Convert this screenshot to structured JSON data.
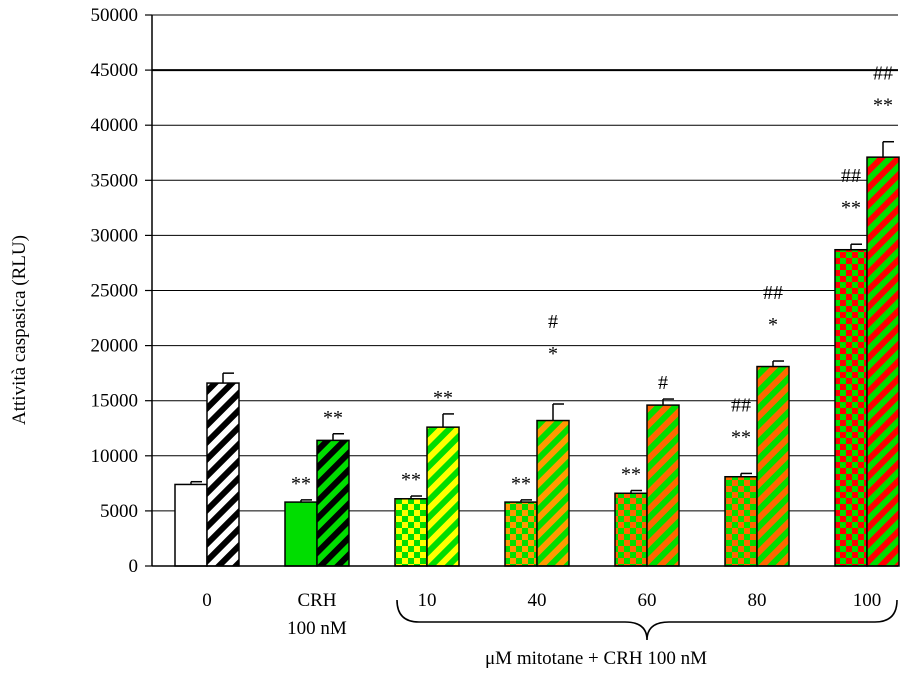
{
  "chart_data": {
    "type": "bar",
    "ylabel": "Attività caspasica (RLU)",
    "ylim": [
      0,
      50000
    ],
    "yticks": [
      "0",
      "5000",
      "10000",
      "15000",
      "20000",
      "25000",
      "30000",
      "35000",
      "40000",
      "45000",
      "50000"
    ],
    "grid": true,
    "categories": [
      {
        "label": "0",
        "label2": ""
      },
      {
        "label": "CRH",
        "label2": "100 nM"
      },
      {
        "label": "10",
        "label2": ""
      },
      {
        "label": "40",
        "label2": ""
      },
      {
        "label": "60",
        "label2": ""
      },
      {
        "label": "80",
        "label2": ""
      },
      {
        "label": "100",
        "label2": ""
      }
    ],
    "group_label": "μM mitotane + CRH 100 nM",
    "series": [
      {
        "values": [
          7400,
          5800,
          6100,
          5800,
          6600,
          8100,
          28700
        ],
        "errors": [
          250,
          200,
          250,
          200,
          250,
          300,
          500
        ],
        "annotations": [
          [],
          [
            "**"
          ],
          [
            "**"
          ],
          [
            "**"
          ],
          [
            "**"
          ],
          [
            "**",
            "##"
          ],
          [
            "**",
            "##"
          ]
        ]
      },
      {
        "values": [
          16600,
          11400,
          12600,
          13200,
          14600,
          18100,
          37100
        ],
        "errors": [
          900,
          600,
          1200,
          1500,
          550,
          500,
          1400
        ],
        "annotations": [
          [],
          [
            "**"
          ],
          [
            "**"
          ],
          [
            "*",
            "#"
          ],
          [
            "#"
          ],
          [
            "*",
            "##"
          ],
          [
            "**",
            "##"
          ]
        ]
      }
    ],
    "colors": {
      "white": "#ffffff",
      "black": "#000000",
      "green": "#00dd00",
      "yellow": "#ffff00",
      "orange": "#ff9900",
      "orange_red": "#ff6600",
      "red": "#ff0000"
    }
  }
}
